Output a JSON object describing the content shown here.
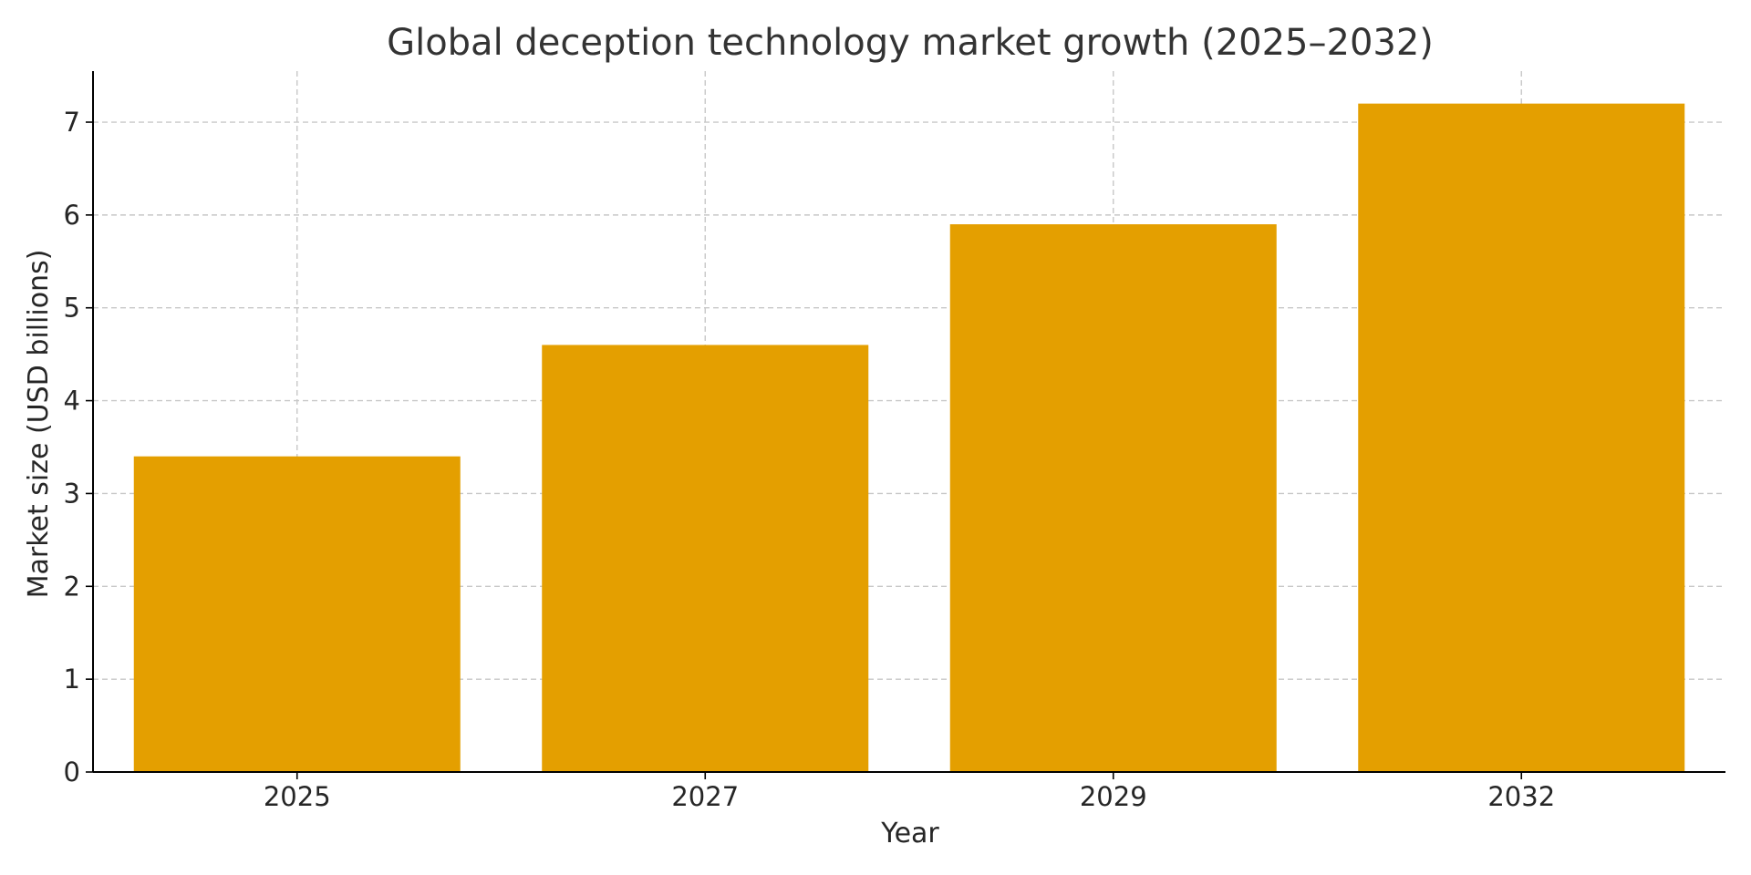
{
  "chart_data": {
    "type": "bar",
    "title": "Global deception technology market growth (2025–2032)",
    "xlabel": "Year",
    "ylabel": "Market size (USD billions)",
    "categories": [
      "2025",
      "2027",
      "2029",
      "2032"
    ],
    "values": [
      3.4,
      4.6,
      5.9,
      7.2
    ],
    "ylim": [
      0,
      7.55
    ],
    "yticks": [
      0,
      1,
      2,
      3,
      4,
      5,
      6,
      7
    ],
    "grid": true,
    "legend": "none",
    "bar_color": "#E49F00"
  }
}
